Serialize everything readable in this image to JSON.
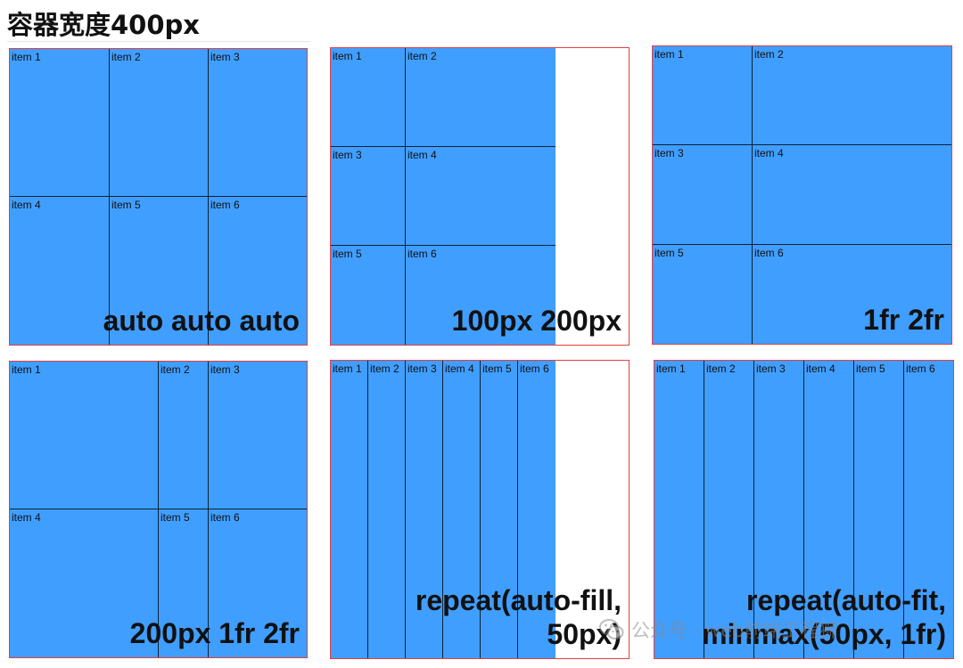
{
  "title": "容器宽度400px",
  "panels": [
    {
      "caption": "auto auto auto",
      "cells": [
        "item 1",
        "item 2",
        "item 3",
        "item 4",
        "item 5",
        "item 6"
      ]
    },
    {
      "caption": "100px 200px",
      "cells": [
        "item 1",
        "item 2",
        "item 3",
        "item 4",
        "item 5",
        "item 6"
      ]
    },
    {
      "caption": "1fr 2fr",
      "cells": [
        "item 1",
        "item 2",
        "item 3",
        "item 4",
        "item 5",
        "item 6"
      ]
    },
    {
      "caption": "200px 1fr 2fr",
      "cells": [
        "item 1",
        "item 2",
        "item 3",
        "item 4",
        "item 5",
        "item 6"
      ]
    },
    {
      "caption": "repeat(auto-fill,\n50px)",
      "cells": [
        "item 1",
        "item 2",
        "item 3",
        "item 4",
        "item 5",
        "item 6"
      ]
    },
    {
      "caption": "repeat(auto-fit,\nminmax(50px, 1fr)",
      "cells": [
        "item 1",
        "item 2",
        "item 3",
        "item 4",
        "item 5",
        "item 6"
      ]
    }
  ],
  "watermark": {
    "icon": "wechat-icon",
    "text": "公众号 · web前端工程狮"
  }
}
